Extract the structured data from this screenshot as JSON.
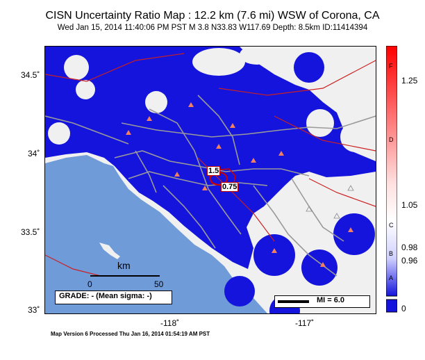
{
  "title": "CISN Uncertainty Ratio Map : 12.2 km (7.6 mi) WSW of Corona, CA",
  "subtitle": "Wed Jan 15, 2014 11:40:06 PM PST   M 3.8   N33.83 W117.69   Depth: 8.5km   ID:11414394",
  "axes": {
    "lat_labels": [
      "34.5˚",
      "34˚",
      "33.5˚",
      "33˚"
    ],
    "lon_labels": [
      "-118˚",
      "-117˚"
    ]
  },
  "colorbar": {
    "ticks": [
      "1.25",
      "1.05",
      "0.98",
      "0.96",
      "0"
    ],
    "grades": [
      "F",
      "D",
      "C",
      "B",
      "A"
    ]
  },
  "scale_bar": {
    "unit": "km",
    "left": "0",
    "right": "50"
  },
  "grade_box": "GRADE: - (Mean sigma: -)",
  "mi_legend": "MI = 6.0",
  "contours": [
    "1.5",
    "0.75"
  ],
  "footer": "Map Version 6 Processed Thu Jan 16, 2014 01:54:19 AM PST",
  "colors": {
    "ocean": "#6f9bd8",
    "land": "#f0f0f0",
    "blue": "#1414dc",
    "station": "#f08060",
    "roads": "#9a9a9a",
    "faults": "#cc2020"
  }
}
